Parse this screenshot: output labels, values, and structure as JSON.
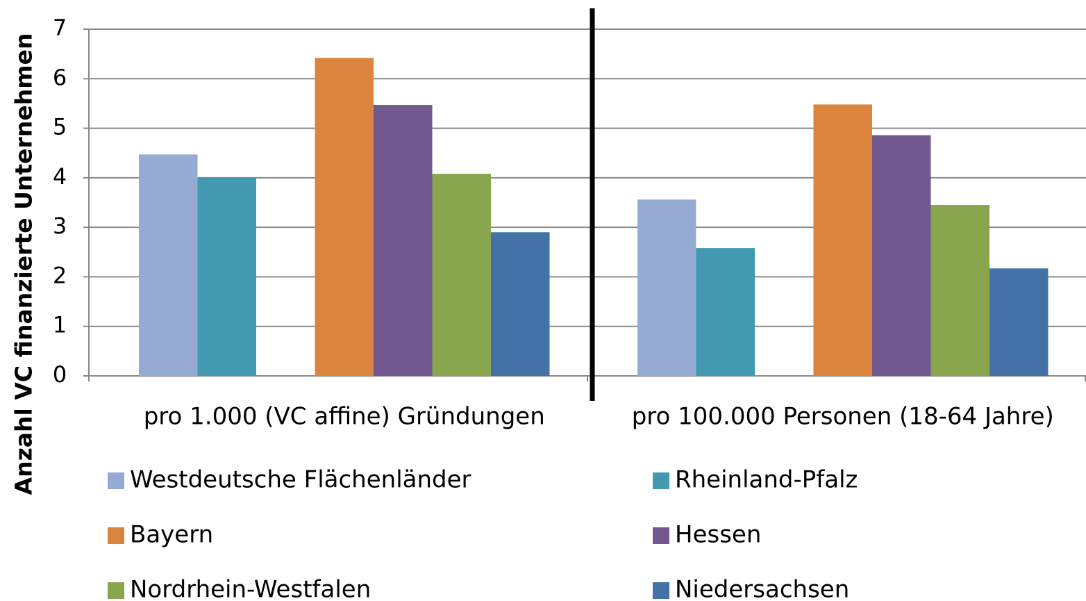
{
  "chart_data": {
    "type": "bar",
    "y_label": "Anzahl VC finanzierte Unternehmen",
    "categories": [
      "pro 1.000 (VC affine) Gründungen",
      "pro 100.000 Personen (18-64 Jahre)"
    ],
    "series": [
      {
        "name": "Westdeutsche Flächenländer",
        "color": "#95abd3",
        "values": [
          4.47,
          3.56
        ]
      },
      {
        "name": "Rheinland-Pfalz",
        "color": "#4299b0",
        "values": [
          4.0,
          2.58
        ]
      },
      {
        "name": "Bayern",
        "color": "#db843e",
        "values": [
          6.42,
          5.48
        ]
      },
      {
        "name": "Hessen",
        "color": "#71588f",
        "values": [
          5.47,
          4.86
        ]
      },
      {
        "name": "Nordrhein-Westfalen",
        "color": "#89a54e",
        "values": [
          4.08,
          3.45
        ]
      },
      {
        "name": "Niedersachsen",
        "color": "#4472a7",
        "values": [
          2.9,
          2.17
        ]
      }
    ],
    "ylim": [
      0,
      7
    ],
    "yticks": [
      0,
      1,
      2,
      3,
      4,
      5,
      6,
      7
    ],
    "grid": true
  }
}
